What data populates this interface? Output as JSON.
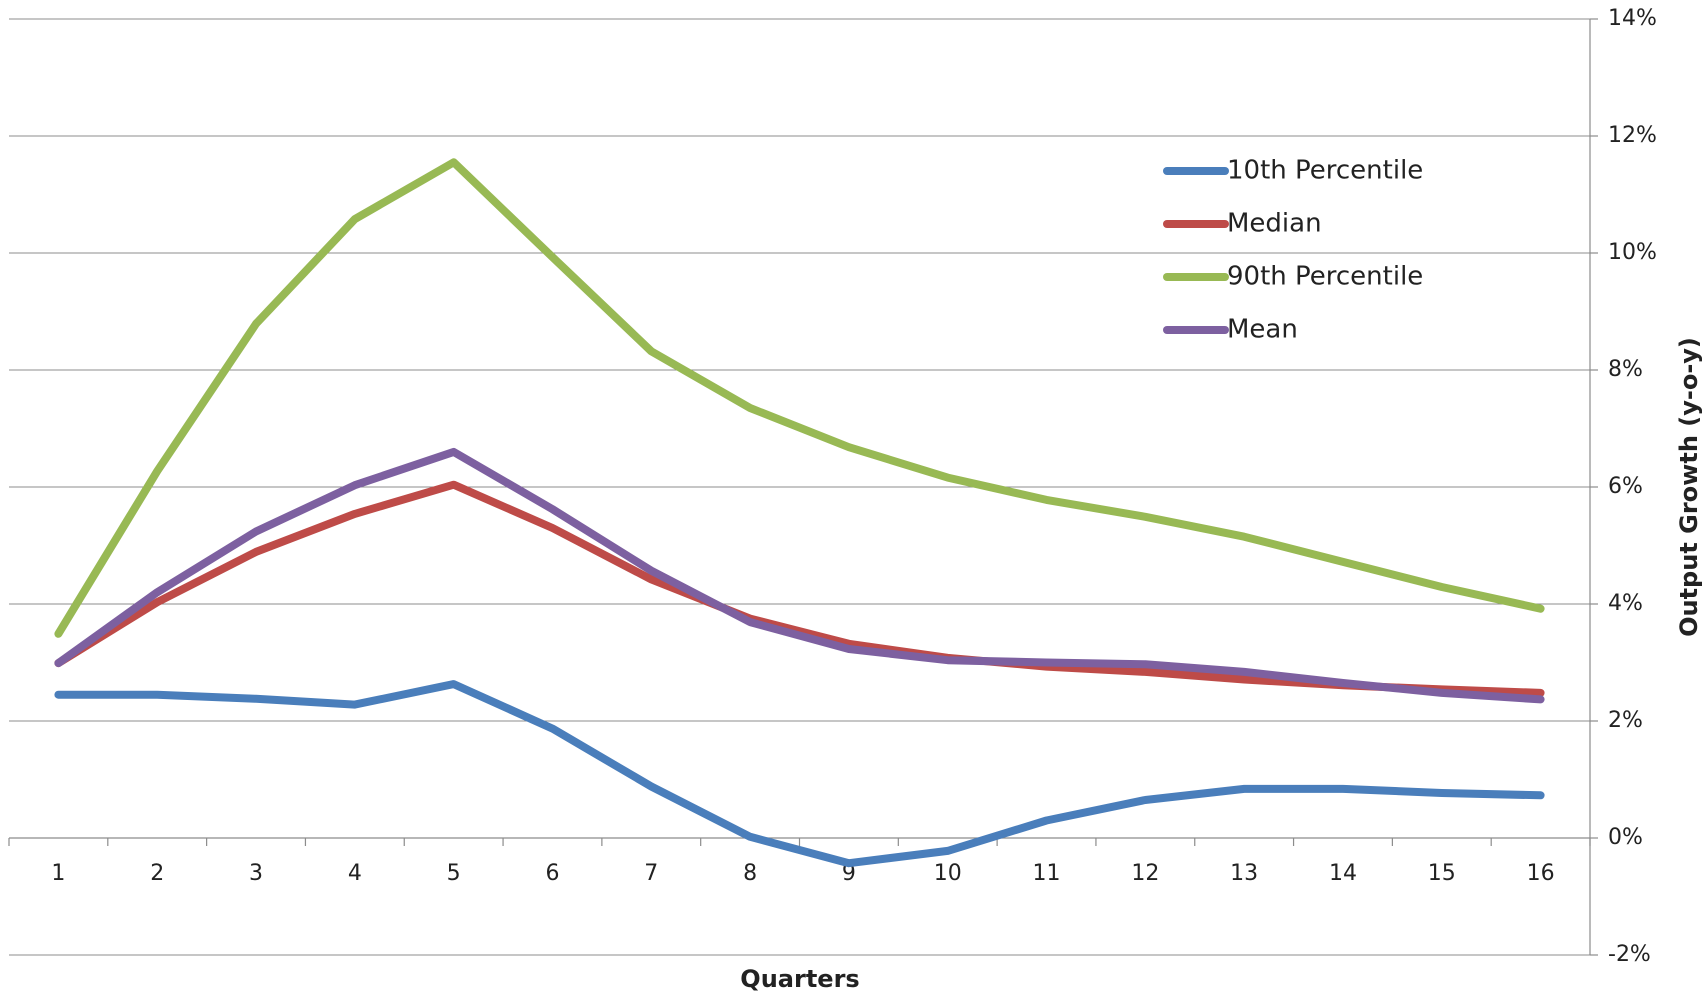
{
  "chart_data": {
    "type": "line",
    "x_label": "Quarters",
    "y_label": "Output Growth (y-o-y)",
    "categories": [
      "1",
      "2",
      "3",
      "4",
      "5",
      "6",
      "7",
      "8",
      "9",
      "10",
      "11",
      "12",
      "13",
      "14",
      "15",
      "16"
    ],
    "series": [
      {
        "name": "10th Percentile",
        "color": "#4a7ebb",
        "values": [
          2.45,
          2.45,
          2.38,
          2.28,
          2.63,
          1.87,
          0.88,
          0.02,
          -0.43,
          -0.22,
          0.3,
          0.65,
          0.84,
          0.84,
          0.77,
          0.73
        ]
      },
      {
        "name": "Median",
        "color": "#be4b48",
        "values": [
          2.99,
          4.03,
          4.89,
          5.54,
          6.04,
          5.3,
          4.42,
          3.75,
          3.32,
          3.08,
          2.93,
          2.84,
          2.71,
          2.61,
          2.54,
          2.48
        ]
      },
      {
        "name": "90th Percentile",
        "color": "#98b954",
        "values": [
          3.49,
          6.27,
          8.79,
          10.58,
          11.55,
          9.93,
          8.32,
          7.35,
          6.68,
          6.16,
          5.78,
          5.49,
          5.15,
          4.72,
          4.29,
          3.92
        ]
      },
      {
        "name": "Mean",
        "color": "#7d60a0",
        "values": [
          2.99,
          4.2,
          5.24,
          6.03,
          6.6,
          5.62,
          4.57,
          3.69,
          3.23,
          3.04,
          3.0,
          2.97,
          2.84,
          2.65,
          2.48,
          2.37
        ]
      }
    ],
    "ylim": [
      -2,
      14
    ],
    "yticks": [
      {
        "value": -2,
        "label": "-2%"
      },
      {
        "value": 0,
        "label": "0%"
      },
      {
        "value": 2,
        "label": "2%"
      },
      {
        "value": 4,
        "label": "4%"
      },
      {
        "value": 6,
        "label": "6%"
      },
      {
        "value": 8,
        "label": "8%"
      },
      {
        "value": 10,
        "label": "10%"
      },
      {
        "value": 12,
        "label": "12%"
      },
      {
        "value": 14,
        "label": "14%"
      }
    ],
    "grid": true,
    "y_axis_side": "right",
    "legend": "upper right"
  }
}
